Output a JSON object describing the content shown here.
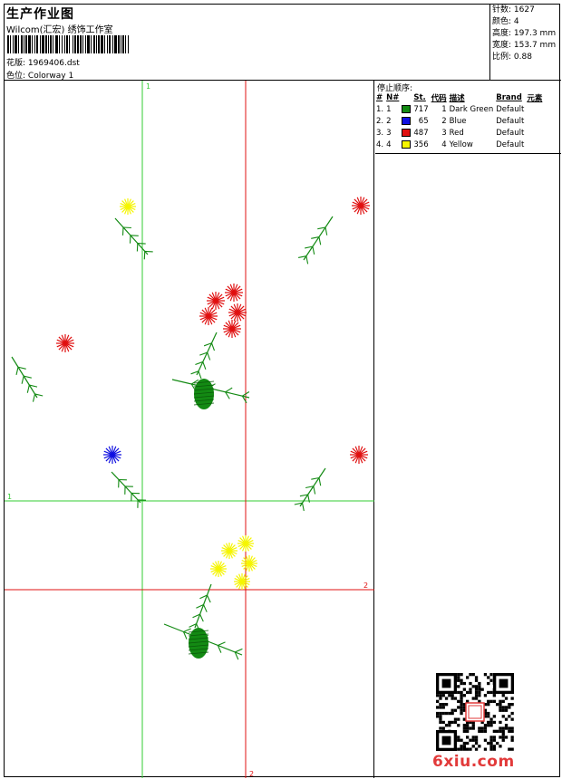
{
  "header": {
    "title": "生产作业图",
    "studio": "Wilcom(汇宏) 绣饰工作室",
    "design_file_label": "花版:",
    "design_file": "1969406.dst",
    "colorway_label": "色位:",
    "colorway": "Colorway 1"
  },
  "stats": {
    "stitches_label": "针数:",
    "stitches": "1627",
    "colors_label": "颜色:",
    "colors": "4",
    "height_label": "高度:",
    "height": "197.3 mm",
    "width_label": "宽度:",
    "width": "153.7 mm",
    "ratio_label": "比例:",
    "ratio": "0.88"
  },
  "stop_sequence": {
    "title": "停止顺序:",
    "columns": [
      "#",
      "N#",
      "St.",
      "代码",
      "描述",
      "Brand",
      "元素"
    ],
    "rows": [
      {
        "idx": "1.",
        "n": "1",
        "color": "#138a13",
        "st": "717",
        "code": "1",
        "desc": "Dark Green",
        "brand": "Default"
      },
      {
        "idx": "2.",
        "n": "2",
        "color": "#1010e0",
        "st": "65",
        "code": "2",
        "desc": "Blue",
        "brand": "Default"
      },
      {
        "idx": "3.",
        "n": "3",
        "color": "#e01010",
        "st": "487",
        "code": "3",
        "desc": "Red",
        "brand": "Default"
      },
      {
        "idx": "4.",
        "n": "4",
        "color": "#f5f500",
        "st": "356",
        "code": "4",
        "desc": "Yellow",
        "brand": "Default"
      }
    ]
  },
  "hoop_guides": {
    "green_label": "1",
    "red_label": "2",
    "green_color": "#33cc33",
    "red_color": "#e01010"
  },
  "brand": {
    "logo_text": "6xiu.com",
    "accent": "#e23a3a"
  }
}
